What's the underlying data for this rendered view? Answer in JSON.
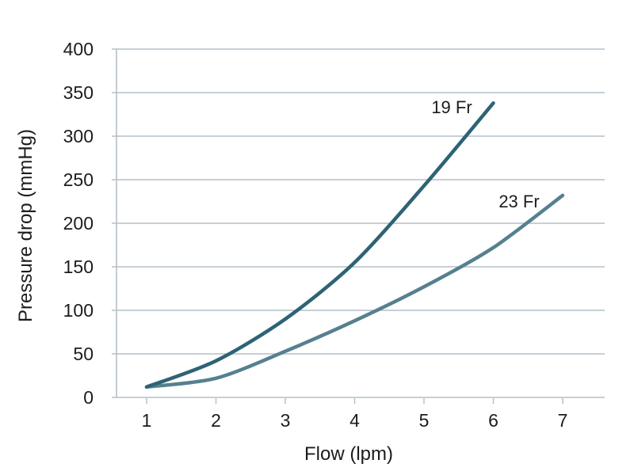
{
  "chart_data": {
    "type": "line",
    "title": "",
    "xlabel": "Flow (lpm)",
    "ylabel": "Pressure drop (mmHg)",
    "xlim": [
      1,
      7
    ],
    "ylim": [
      0,
      400
    ],
    "x_ticks": [
      1,
      2,
      3,
      4,
      5,
      6,
      7
    ],
    "y_ticks": [
      0,
      50,
      100,
      150,
      200,
      250,
      300,
      350,
      400
    ],
    "grid": "horizontal",
    "legend_position": "inline-annotations",
    "series": [
      {
        "name": "23 Fr",
        "label": "23 Fr",
        "color": "#56808f",
        "x": [
          1,
          2,
          3,
          4,
          5,
          6,
          7
        ],
        "values": [
          12,
          22,
          53,
          88,
          127,
          172,
          232
        ]
      },
      {
        "name": "19 Fr",
        "label": "19 Fr",
        "color": "#2e6375",
        "x": [
          1,
          2,
          3,
          4,
          5,
          6
        ],
        "values": [
          12,
          42,
          90,
          155,
          243,
          338
        ]
      }
    ],
    "colors": {
      "grid": "#b4c0c8",
      "axis": "#b4c0c8",
      "text": "#1c1c1c",
      "background": "#ffffff"
    }
  }
}
